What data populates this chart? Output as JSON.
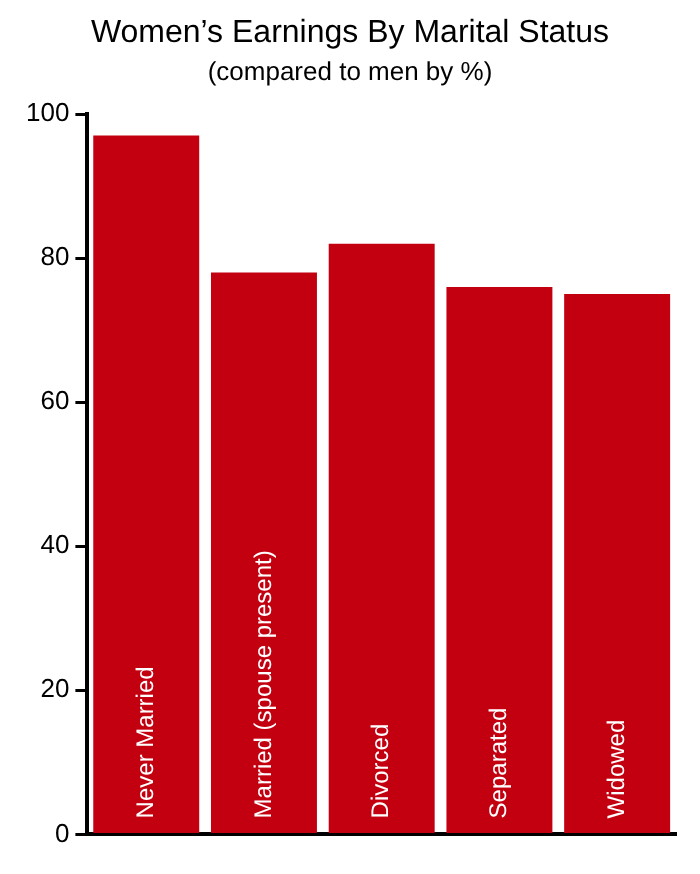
{
  "chart_data": {
    "type": "bar",
    "title": "Women’s Earnings By Marital Status",
    "subtitle": "(compared to men by %)",
    "categories": [
      "Never Married",
      "Married (spouse present)",
      "Divorced",
      "Separated",
      "Widowed"
    ],
    "values": [
      97,
      78,
      82,
      76,
      75
    ],
    "color": "#c20010",
    "ylim": [
      0,
      100
    ],
    "yticks": [
      0,
      20,
      40,
      60,
      80,
      100
    ],
    "grid": false,
    "legend": false
  }
}
